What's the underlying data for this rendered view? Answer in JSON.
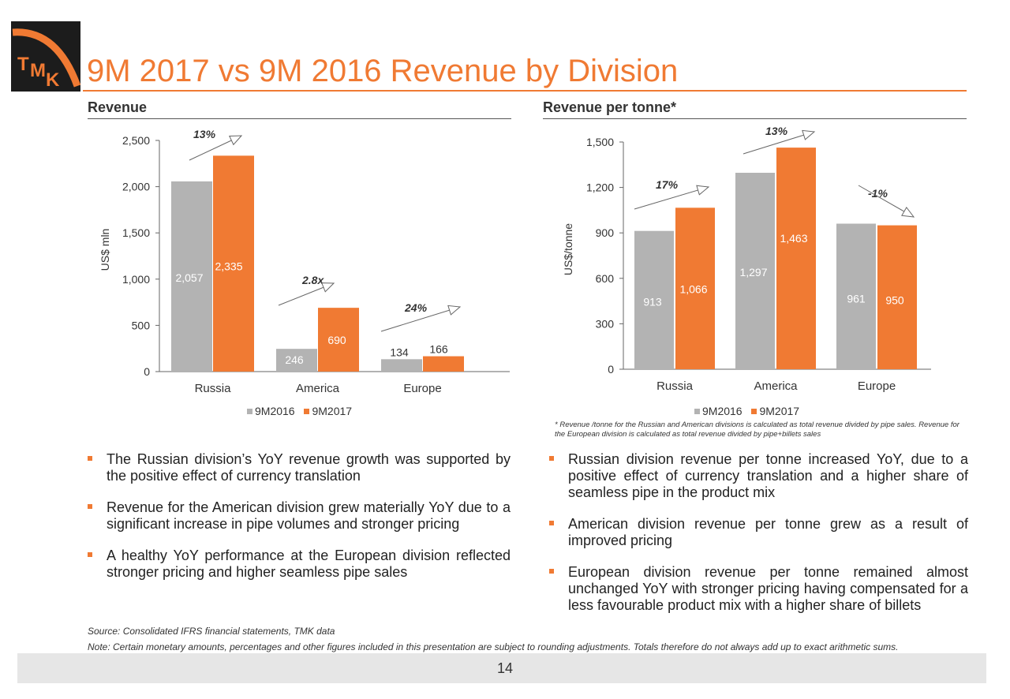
{
  "logo": {
    "letters": [
      "T",
      "M",
      "K"
    ]
  },
  "title": "9M 2017 vs 9M 2016 Revenue by Division",
  "colors": {
    "accent": "#f07a33",
    "series_2016": "#b3b3b3",
    "series_2017": "#f07a33"
  },
  "left_section": {
    "heading": "Revenue"
  },
  "right_section": {
    "heading": "Revenue per tonne*"
  },
  "chart_data": [
    {
      "type": "bar",
      "categories": [
        "Russia",
        "America",
        "Europe"
      ],
      "series": [
        {
          "name": "9M2016",
          "values": [
            2057,
            246,
            134
          ],
          "labels": [
            "2,057",
            "246",
            "134"
          ]
        },
        {
          "name": "9M2017",
          "values": [
            2335,
            690,
            166
          ],
          "labels": [
            "2,335",
            "690",
            "166"
          ]
        }
      ],
      "ylabel": "US$ mln",
      "ylim": [
        0,
        2500
      ],
      "yticks": [
        0,
        500,
        1000,
        1500,
        2000,
        2500
      ],
      "ytick_labels": [
        "0",
        "500",
        "1,000",
        "1,500",
        "2,000",
        "2,500"
      ],
      "annotations": [
        "13%",
        "2.8x",
        "24%"
      ],
      "legend": "bottom",
      "grid": false
    },
    {
      "type": "bar",
      "categories": [
        "Russia",
        "America",
        "Europe"
      ],
      "series": [
        {
          "name": "9M2016",
          "values": [
            913,
            1297,
            961
          ],
          "labels": [
            "913",
            "1,297",
            "961"
          ]
        },
        {
          "name": "9M2017",
          "values": [
            1066,
            1463,
            950
          ],
          "labels": [
            "1,066",
            "1,463",
            "950"
          ]
        }
      ],
      "ylabel": "US$/tonne",
      "ylim": [
        0,
        1500
      ],
      "yticks": [
        0,
        300,
        600,
        900,
        1200,
        1500
      ],
      "ytick_labels": [
        "0",
        "300",
        "600",
        "900",
        "1,200",
        "1,500"
      ],
      "annotations": [
        "17%",
        "13%",
        "-1%"
      ],
      "legend": "bottom",
      "grid": false
    }
  ],
  "footnote": "* Revenue /tonne for the Russian and American divisions  is calculated as total revenue divided by pipe sales. Revenue for the European division is calculated as total revenue divided by pipe+billets sales",
  "left_bullets": [
    "The Russian division’s YoY revenue growth was supported by the positive effect of currency translation",
    "Revenue for the American division grew materially YoY due to a significant increase in pipe volumes and stronger pricing",
    "A healthy YoY performance at the European division reflected stronger pricing and higher seamless pipe sales"
  ],
  "right_bullets": [
    "Russian division revenue per tonne increased YoY, due to a positive effect of currency translation and a higher share of seamless pipe in the product mix",
    "American division revenue per tonne grew as a result of improved pricing",
    "European division revenue per tonne remained almost unchanged YoY with stronger pricing having compensated for a less favourable product mix with a higher share of billets"
  ],
  "source": "Source: Consolidated IFRS financial statements, TMK data",
  "note": "Note: Certain monetary amounts, percentages and other figures included in this presentation are subject to rounding adjustments. Totals therefore do not always add up to exact arithmetic sums.",
  "page_number": "14"
}
